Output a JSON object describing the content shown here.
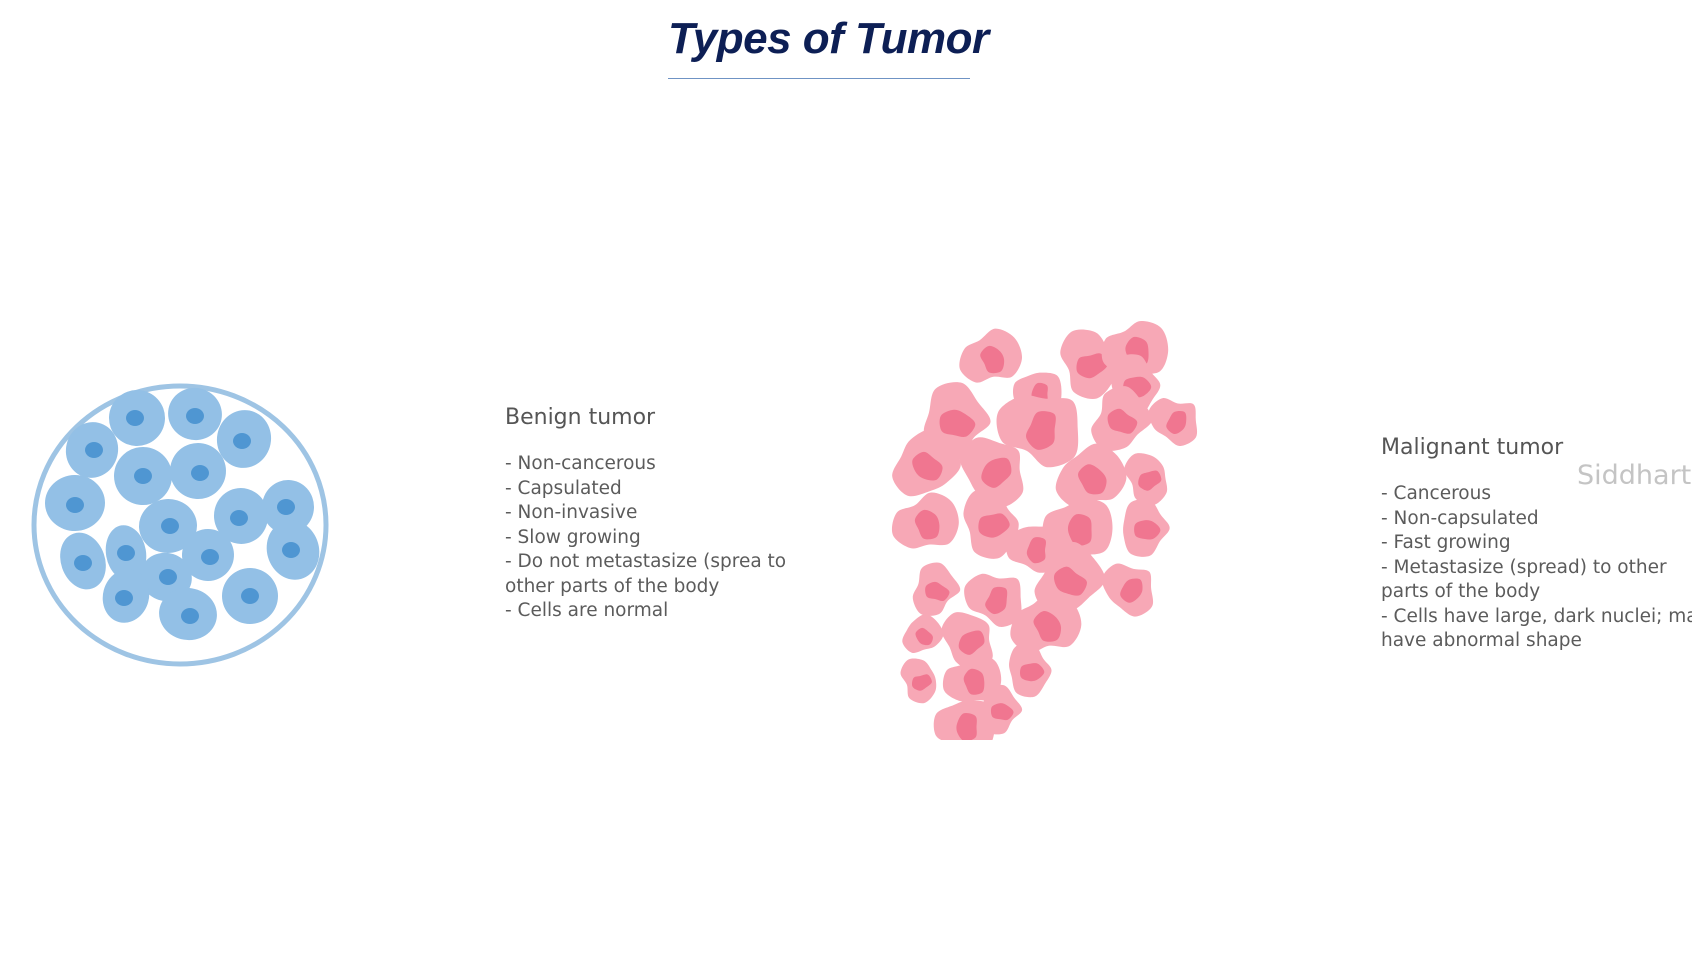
{
  "title": "Types of Tumor",
  "benign": {
    "heading": "Benign tumor",
    "items": [
      "- Non-cancerous",
      "- Capsulated",
      "- Non-invasive",
      "- Slow growing",
      "- Do not metastasize (sprea to other parts of the body",
      "- Cells are normal"
    ]
  },
  "malignant": {
    "heading": "Malignant tumor",
    "items": [
      "- Cancerous",
      "- Non-capsulated",
      "- Fast growing",
      "- Metastasize (spread) to other parts of the body",
      "- Cells have large, dark nuclei; may have abnormal shape"
    ]
  },
  "watermark": "Siddharth",
  "colors": {
    "title": "#0d1f55",
    "benign_capsule": "#9ec4e4",
    "benign_cell": "#93c0e6",
    "benign_nucleus": "#4f96d2",
    "malignant_cell": "#f7a8b6",
    "malignant_nucleus": "#f07690"
  }
}
